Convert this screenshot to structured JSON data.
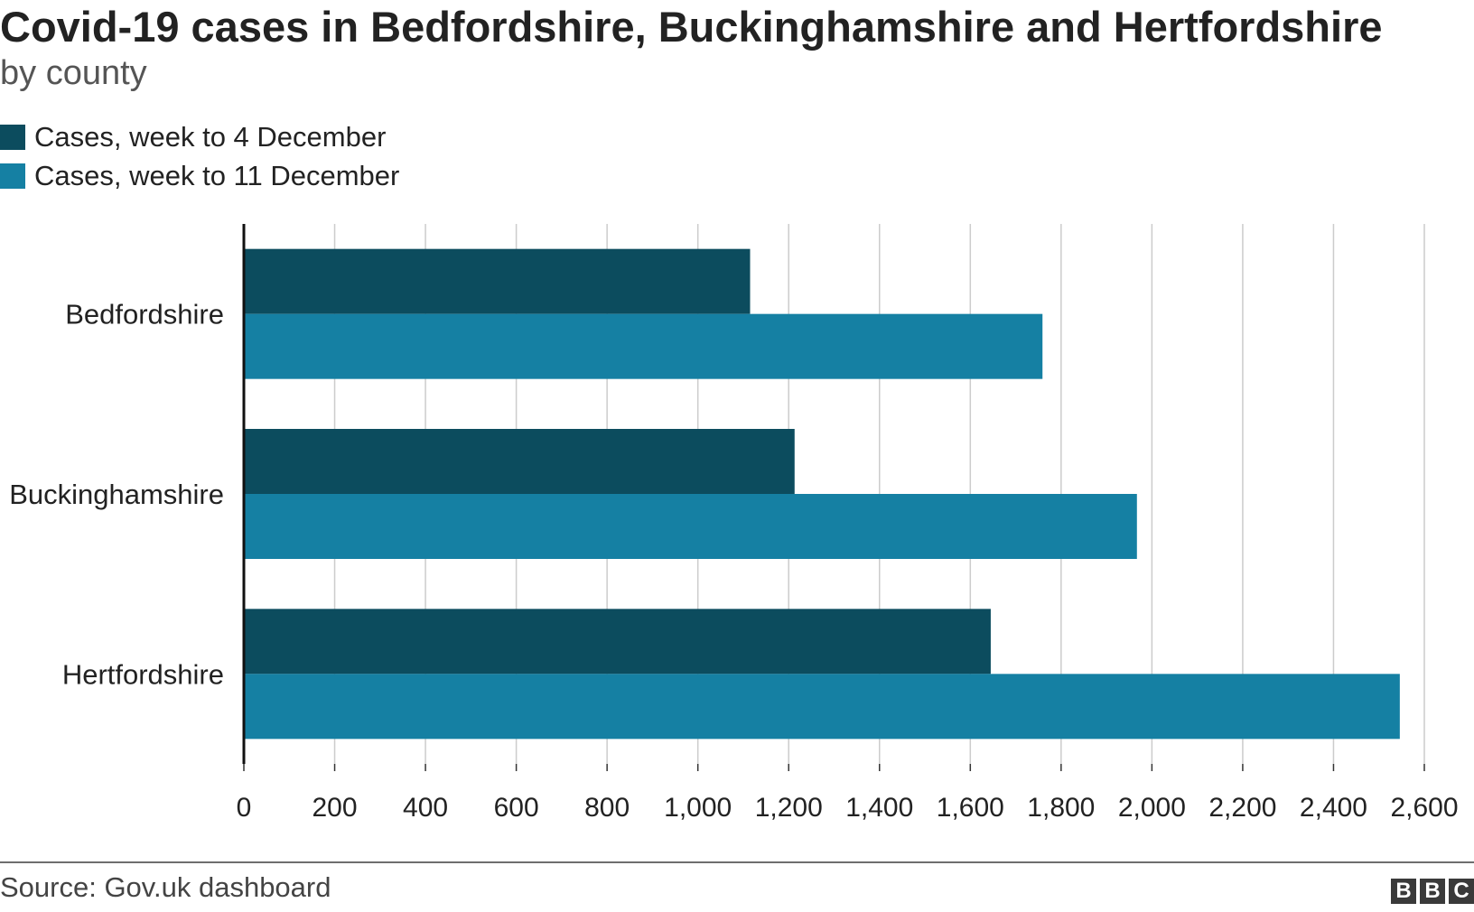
{
  "chart_data": {
    "type": "bar",
    "orientation": "horizontal",
    "title": "Covid-19 cases in Bedfordshire, Buckinghamshire and Hertfordshire",
    "subtitle": "by county",
    "categories": [
      "Bedfordshire",
      "Buckinghamshire",
      "Hertfordshire"
    ],
    "series": [
      {
        "name": "Cases, week to 4 December",
        "color": "#0c4c5e",
        "values": [
          1115,
          1213,
          1645
        ]
      },
      {
        "name": "Cases, week to 11 December",
        "color": "#1580a3",
        "values": [
          1759,
          1967,
          2546
        ]
      }
    ],
    "xlim": [
      0,
      2600
    ],
    "xticks": [
      "0",
      "200",
      "400",
      "600",
      "800",
      "1,000",
      "1,200",
      "1,400",
      "1,600",
      "1,800",
      "2,000",
      "2,200",
      "2,400",
      "2,600"
    ],
    "grid": true,
    "legend_position": "top-left",
    "source": "Source: Gov.uk dashboard"
  },
  "branding": {
    "logo_letters": [
      "B",
      "B",
      "C"
    ]
  }
}
